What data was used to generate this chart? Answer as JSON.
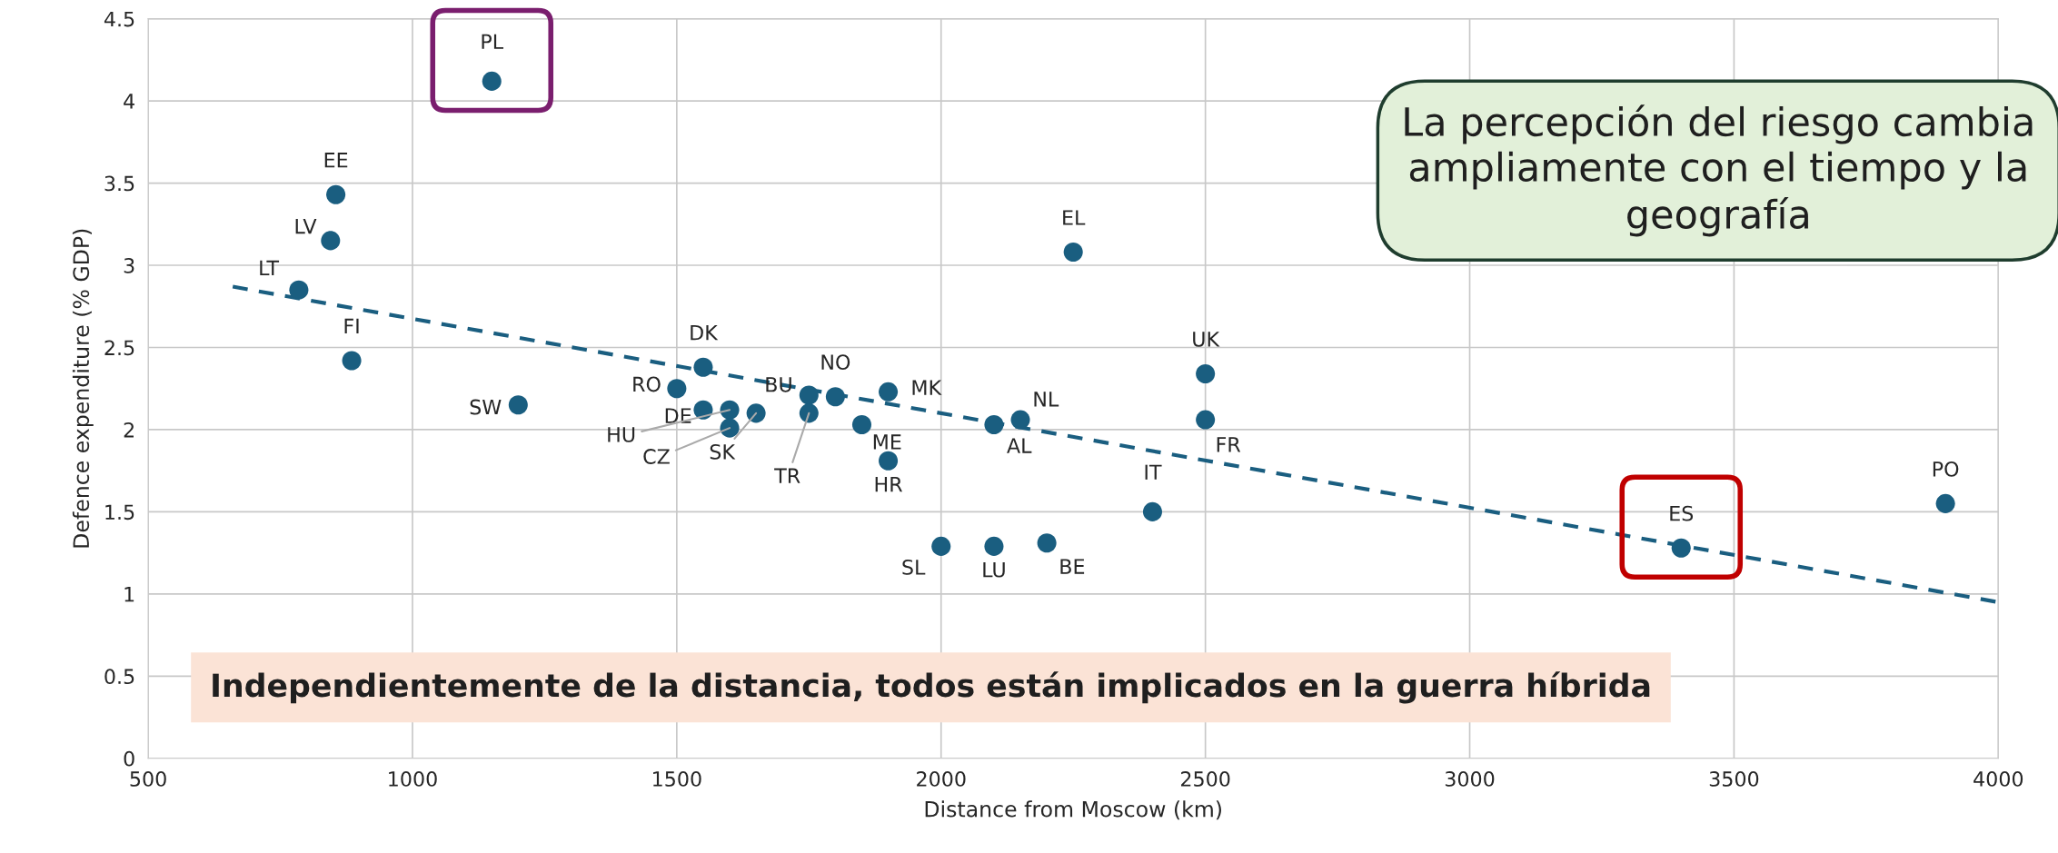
{
  "chart_data": {
    "type": "scatter",
    "xlabel": "Distance from Moscow (km)",
    "ylabel": "Defence expenditure (% GDP)",
    "xlim": [
      500,
      4000
    ],
    "xticks": [
      500,
      1000,
      1500,
      2000,
      2500,
      3000,
      3500,
      4000
    ],
    "ylim": [
      0,
      4.5
    ],
    "yticks": [
      0,
      0.5,
      1,
      1.5,
      2,
      2.5,
      3,
      3.5,
      4,
      4.5
    ],
    "grid": true,
    "marker": "circle",
    "series": [
      {
        "color": "#1a5e80",
        "x": [
          1150,
          855,
          845,
          785,
          885,
          1200,
          1500,
          1550,
          1550,
          1600,
          1650,
          1600,
          1750,
          1750,
          1800,
          1900,
          1850,
          1900,
          2100,
          2150,
          2500,
          2500,
          2400,
          2250,
          2000,
          2100,
          2200,
          3400,
          3900
        ],
        "values": [
          4.12,
          3.43,
          3.15,
          2.85,
          2.42,
          2.15,
          2.25,
          2.38,
          2.12,
          2.12,
          2.1,
          2.01,
          2.21,
          2.1,
          2.2,
          2.23,
          2.03,
          1.81,
          2.03,
          2.06,
          2.34,
          2.06,
          1.5,
          3.08,
          1.29,
          1.29,
          1.31,
          1.28,
          1.55
        ]
      },
      {
        "type": "line",
        "color": "#1a5e80",
        "line_style": "dashed",
        "marker": "none",
        "x": [
          660,
          4000
        ],
        "values": [
          2.87,
          0.95
        ]
      }
    ],
    "annotations": [
      {
        "text": "PL",
        "x": 1150,
        "y": 4.12
      },
      {
        "text": "EE",
        "x": 855,
        "y": 3.43
      },
      {
        "text": "LV",
        "x": 845,
        "y": 3.15
      },
      {
        "text": "LT",
        "x": 785,
        "y": 2.85
      },
      {
        "text": "FI",
        "x": 885,
        "y": 2.42
      },
      {
        "text": "SW",
        "x": 1200,
        "y": 2.15
      },
      {
        "text": "RO",
        "x": 1500,
        "y": 2.25
      },
      {
        "text": "DK",
        "x": 1550,
        "y": 2.38
      },
      {
        "text": "DE",
        "x": 1550,
        "y": 2.12
      },
      {
        "text": "HU",
        "x": 1600,
        "y": 2.12
      },
      {
        "text": "SK",
        "x": 1650,
        "y": 2.1
      },
      {
        "text": "CZ",
        "x": 1600,
        "y": 2.01
      },
      {
        "text": "BU",
        "x": 1750,
        "y": 2.21
      },
      {
        "text": "TR",
        "x": 1750,
        "y": 2.1
      },
      {
        "text": "NO",
        "x": 1800,
        "y": 2.2
      },
      {
        "text": "MK",
        "x": 1900,
        "y": 2.23
      },
      {
        "text": "ME",
        "x": 1850,
        "y": 2.03
      },
      {
        "text": "HR",
        "x": 1900,
        "y": 1.81
      },
      {
        "text": "AL",
        "x": 2100,
        "y": 2.03
      },
      {
        "text": "NL",
        "x": 2150,
        "y": 2.06
      },
      {
        "text": "UK",
        "x": 2500,
        "y": 2.34
      },
      {
        "text": "FR",
        "x": 2500,
        "y": 2.06
      },
      {
        "text": "IT",
        "x": 2400,
        "y": 1.5
      },
      {
        "text": "EL",
        "x": 2250,
        "y": 3.08
      },
      {
        "text": "SL",
        "x": 2000,
        "y": 1.29
      },
      {
        "text": "LU",
        "x": 2100,
        "y": 1.29
      },
      {
        "text": "BE",
        "x": 2200,
        "y": 1.31
      },
      {
        "text": "ES",
        "x": 3400,
        "y": 1.28
      },
      {
        "text": "PO",
        "x": 3900,
        "y": 1.55
      },
      "La percepción del riesgo cambia ampliamente con el tiempo y la geografía",
      "Independientemente de la distancia, todos están implicados en la guerra híbrida"
    ]
  }
}
